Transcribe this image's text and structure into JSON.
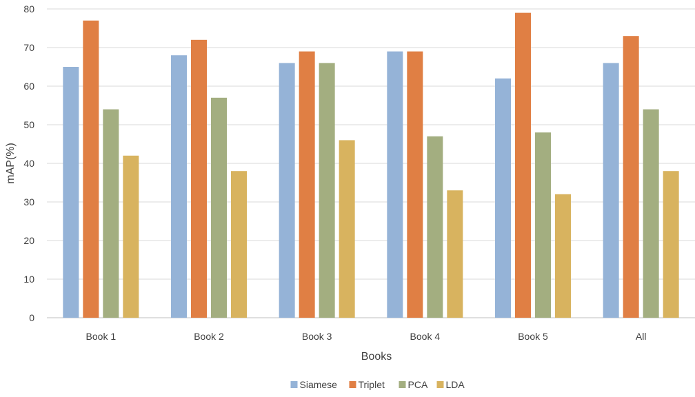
{
  "chart_data": {
    "type": "bar",
    "title": "",
    "xlabel": "Books",
    "ylabel": "mAP(%)",
    "ylim": [
      0,
      80
    ],
    "yticks": [
      0,
      10,
      20,
      30,
      40,
      50,
      60,
      70,
      80
    ],
    "grid": true,
    "legend": "bottom",
    "categories": [
      "Book 1",
      "Book 2",
      "Book 3",
      "Book 4",
      "Book 5",
      "All"
    ],
    "series": [
      {
        "name": "Siamese",
        "color": "#95b3d7",
        "values": [
          65,
          68,
          66,
          69,
          62,
          66
        ]
      },
      {
        "name": "Triplet",
        "color": "#e07f44",
        "values": [
          77,
          72,
          69,
          69,
          79,
          73
        ]
      },
      {
        "name": "PCA",
        "color": "#a3ae80",
        "values": [
          54,
          57,
          66,
          47,
          48,
          54
        ]
      },
      {
        "name": "LDA",
        "color": "#d8b35f",
        "values": [
          42,
          38,
          46,
          33,
          32,
          38
        ]
      }
    ]
  }
}
